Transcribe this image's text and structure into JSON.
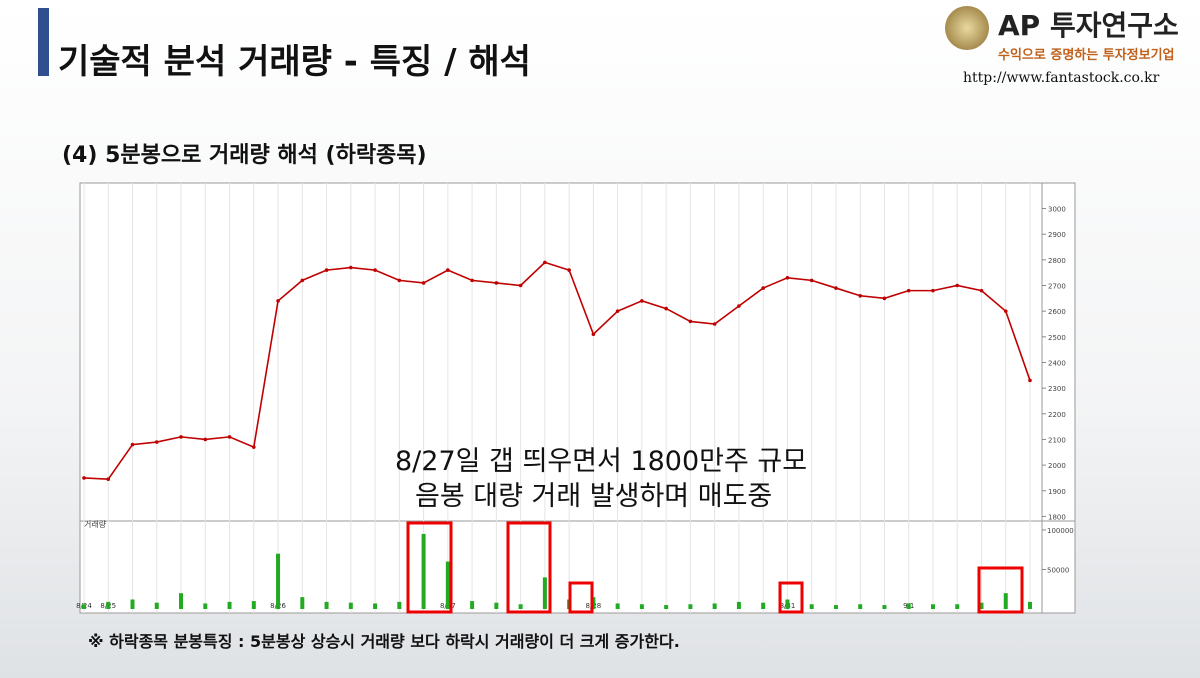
{
  "header": {
    "title": "기술적 분석 거래량 - 특징 / 해석",
    "logo": "AP 투자연구소",
    "slogan": "수익으로 증명하는 투자정보기업",
    "url": "http://www.fantastock.co.kr"
  },
  "subtitle": "(4) 5분봉으로 거래량 해석 (하락종목)",
  "annotation": [
    "8/27일 갭 띄우면서 1800만주 규모",
    "음봉 대량 거래 발생하며 매도중"
  ],
  "footnote": "※ 하락종목 분봉특징 : 5분봉상 상승시 거래량 보다 하락시 거래량이 더 크게 증가한다.",
  "chart_data": {
    "type": "line",
    "volume_label": "거래량",
    "categories": [
      "8/24",
      "8/25",
      null,
      null,
      null,
      null,
      null,
      null,
      "8/26",
      null,
      null,
      null,
      null,
      null,
      null,
      "8/27",
      null,
      null,
      null,
      null,
      null,
      "8/28",
      null,
      null,
      null,
      null,
      null,
      null,
      null,
      "8/31",
      null,
      null,
      null,
      null,
      "9/1",
      null,
      null,
      null,
      null,
      null
    ],
    "series": [
      {
        "name": "price",
        "color": "#c00000",
        "values": [
          1950,
          1945,
          2080,
          2090,
          2110,
          2100,
          2110,
          2070,
          2640,
          2720,
          2760,
          2770,
          2760,
          2720,
          2710,
          2760,
          2720,
          2710,
          2700,
          2790,
          2760,
          2510,
          2600,
          2640,
          2610,
          2560,
          2550,
          2620,
          2690,
          2730,
          2720,
          2690,
          2660,
          2650,
          2680,
          2680,
          2700,
          2680,
          2600,
          2330
        ]
      },
      {
        "name": "volume",
        "color": "#22aa22",
        "values": [
          6000,
          9000,
          12000,
          8000,
          20000,
          7000,
          9000,
          10000,
          70000,
          15000,
          9000,
          8000,
          7000,
          9000,
          95000,
          60000,
          10000,
          8000,
          6000,
          40000,
          12000,
          15000,
          7000,
          6000,
          5000,
          6000,
          7000,
          9000,
          8000,
          12000,
          6000,
          5000,
          6000,
          5000,
          7000,
          6000,
          6000,
          8000,
          20000,
          9000
        ]
      }
    ],
    "ylim": [
      1790,
      3080
    ],
    "yticks": [
      3000,
      2900,
      2800,
      2700,
      2600,
      2500,
      2400,
      2300,
      2200,
      2100,
      2000,
      1900,
      1800
    ],
    "y2lim": [
      0,
      105000
    ],
    "y2ticks": [
      100000,
      50000
    ],
    "grid": true
  }
}
